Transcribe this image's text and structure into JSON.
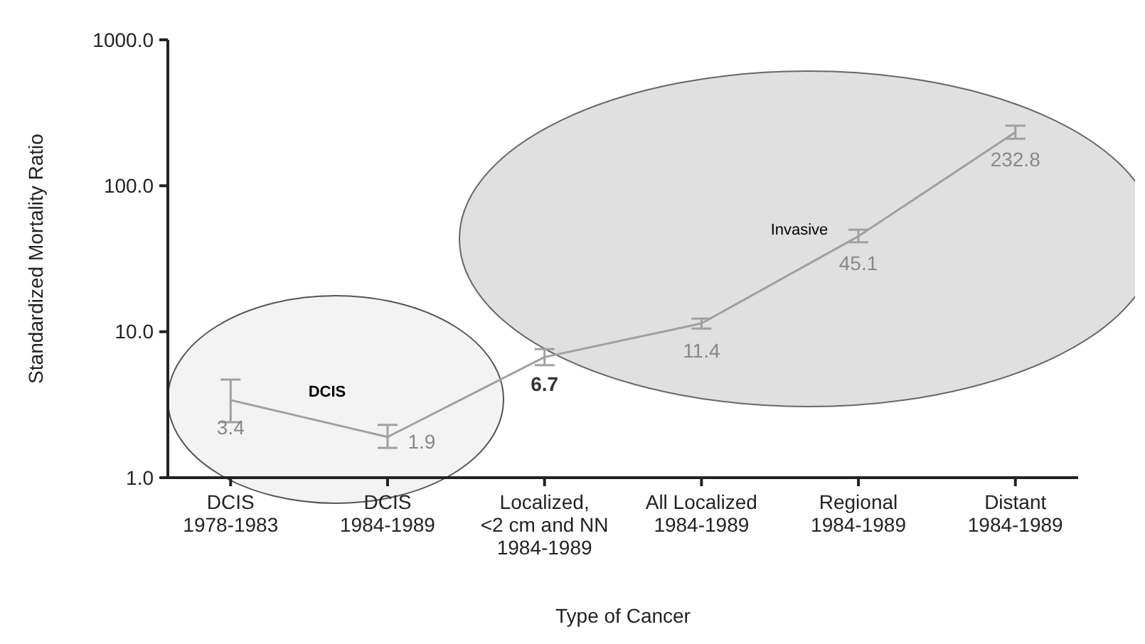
{
  "chart_data": {
    "type": "line",
    "xlabel": "Type of Cancer",
    "ylabel": "Standardized Mortality Ratio",
    "categories": [
      "DCIS\n1978-1983",
      "DCIS\n1984-1989",
      "Localized,\n<2 cm and NN\n1984-1989",
      "All Localized\n1984-1989",
      "Regional\n1984-1989",
      "Distant\n1984-1989"
    ],
    "series": [
      {
        "color": "#a0a0a0",
        "values": [
          3.4,
          1.9,
          6.7,
          11.4,
          45.1,
          232.8
        ],
        "errors": [
          [
            2.4,
            4.7
          ],
          [
            1.6,
            2.3
          ],
          [
            5.9,
            7.6
          ],
          [
            10.5,
            12.3
          ],
          [
            41,
            50
          ],
          [
            210,
            258
          ]
        ],
        "value_labels": [
          "3.4",
          "1.9",
          "6.7",
          "11.4",
          "45.1",
          "232.8"
        ]
      }
    ],
    "log": true,
    "ylim": [
      1,
      1000
    ],
    "yticks": [
      {
        "value": 1,
        "label": "1.0"
      },
      {
        "value": 10,
        "label": "10.0"
      },
      {
        "value": 100,
        "label": "100.0"
      },
      {
        "value": 1000,
        "label": "1000.0"
      }
    ],
    "grid": false,
    "marker": "none",
    "line_style": "solid",
    "annotations": [
      "DCIS",
      "Invasive"
    ]
  }
}
